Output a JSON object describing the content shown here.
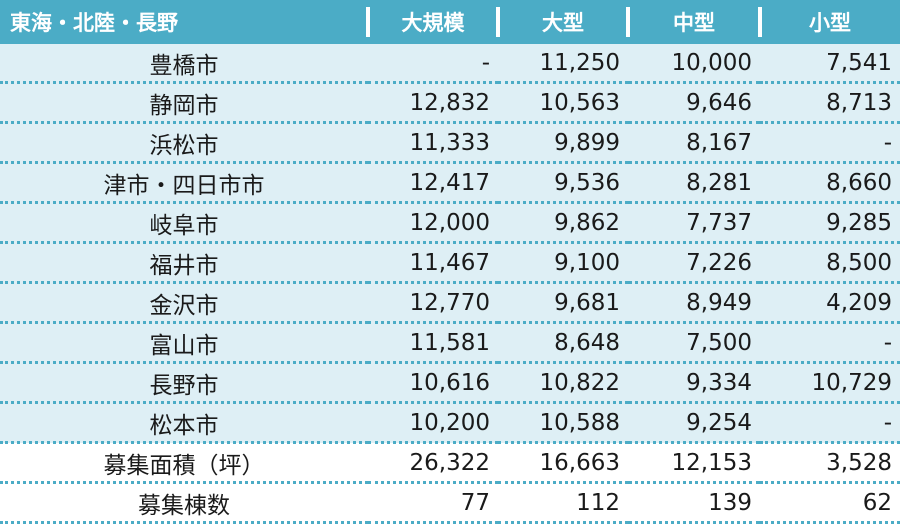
{
  "header": {
    "region": "東海・北陸・長野",
    "col_large_scale": "大規模",
    "col_large": "大型",
    "col_medium": "中型",
    "col_small": "小型"
  },
  "rows": [
    {
      "city": "豊橋市",
      "large_scale": "-",
      "large": "11,250",
      "medium": "10,000",
      "small": "7,541"
    },
    {
      "city": "静岡市",
      "large_scale": "12,832",
      "large": "10,563",
      "medium": "9,646",
      "small": "8,713"
    },
    {
      "city": "浜松市",
      "large_scale": "11,333",
      "large": "9,899",
      "medium": "8,167",
      "small": "-"
    },
    {
      "city": "津市・四日市市",
      "large_scale": "12,417",
      "large": "9,536",
      "medium": "8,281",
      "small": "8,660"
    },
    {
      "city": "岐阜市",
      "large_scale": "12,000",
      "large": "9,862",
      "medium": "7,737",
      "small": "9,285"
    },
    {
      "city": "福井市",
      "large_scale": "11,467",
      "large": "9,100",
      "medium": "7,226",
      "small": "8,500"
    },
    {
      "city": "金沢市",
      "large_scale": "12,770",
      "large": "9,681",
      "medium": "8,949",
      "small": "4,209"
    },
    {
      "city": "富山市",
      "large_scale": "11,581",
      "large": "8,648",
      "medium": "7,500",
      "small": "-"
    },
    {
      "city": "長野市",
      "large_scale": "10,616",
      "large": "10,822",
      "medium": "9,334",
      "small": "10,729"
    },
    {
      "city": "松本市",
      "large_scale": "10,200",
      "large": "10,588",
      "medium": "9,254",
      "small": "-"
    }
  ],
  "summary": [
    {
      "label": "募集面積（坪）",
      "large_scale": "26,322",
      "large": "16,663",
      "medium": "12,153",
      "small": "3,528"
    },
    {
      "label": "募集棟数",
      "large_scale": "77",
      "large": "112",
      "medium": "139",
      "small": "62"
    }
  ],
  "colors": {
    "header_bg": "#4bacc6",
    "row_alt_bg": "#deeff5",
    "divider": "#4bacc6"
  }
}
